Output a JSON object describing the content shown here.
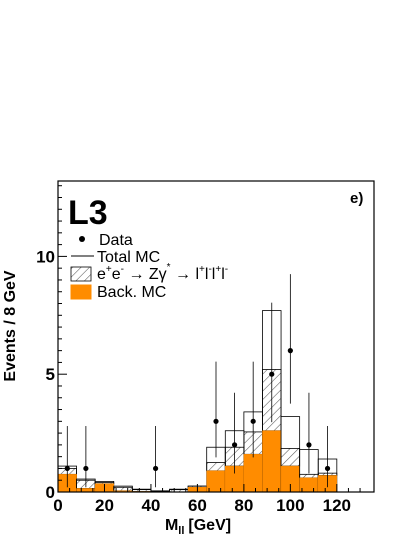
{
  "chart_data": {
    "type": "bar",
    "experiment_label": "L3",
    "panel_label": "e)",
    "xlabel_main": "M",
    "xlabel_sub": "ll",
    "xlabel_unit": "[GeV]",
    "ylabel": "Events / 8 GeV",
    "xlim": [
      0,
      136
    ],
    "ylim": [
      0,
      13.2
    ],
    "x_ticks": [
      0,
      20,
      40,
      60,
      80,
      100,
      120
    ],
    "y_ticks": [
      0,
      5,
      10
    ],
    "bin_edges": [
      0,
      8,
      16,
      24,
      32,
      40,
      48,
      56,
      64,
      72,
      80,
      88,
      96,
      104,
      112,
      120
    ],
    "series": [
      {
        "name": "Total MC",
        "style": "outline",
        "values": [
          1.1,
          0.55,
          0.45,
          0.25,
          0.12,
          0.05,
          0.12,
          0.25,
          1.9,
          2.6,
          3.4,
          7.7,
          3.2,
          1.8,
          1.4
        ]
      },
      {
        "name": "e+e- → Zγ* → l+l-l+l-",
        "style": "hatched",
        "values": [
          1.0,
          0.5,
          0.4,
          0.2,
          0.1,
          0.03,
          0.1,
          0.25,
          1.25,
          1.9,
          2.55,
          5.2,
          1.85,
          0.75,
          0.8
        ]
      },
      {
        "name": "Back. MC",
        "style": "filled",
        "color": "#FF8C00",
        "values": [
          0.75,
          0.15,
          0.35,
          0.05,
          0.02,
          0.0,
          0.0,
          0.2,
          0.9,
          1.1,
          1.6,
          2.6,
          1.1,
          0.6,
          0.7
        ]
      }
    ],
    "data_points": {
      "name": "Data",
      "x": [
        4,
        12,
        42,
        68,
        76,
        84,
        92,
        100,
        108,
        116
      ],
      "y": [
        1,
        1,
        1,
        3,
        2,
        3,
        5,
        6,
        2,
        1
      ]
    },
    "legend": {
      "position": "top-left",
      "entries": [
        {
          "label": "Data",
          "marker": "dot"
        },
        {
          "label": "Total MC",
          "marker": "line"
        },
        {
          "label_parts": [
            "e",
            "+",
            "e",
            "-",
            " → Zγ",
            "*",
            " → l",
            "+",
            "l",
            "-",
            "l",
            "+",
            "l",
            "-"
          ],
          "marker": "hatched"
        },
        {
          "label": "Back. MC",
          "marker": "filled",
          "color": "#FF8C00"
        }
      ]
    },
    "grid": false
  }
}
